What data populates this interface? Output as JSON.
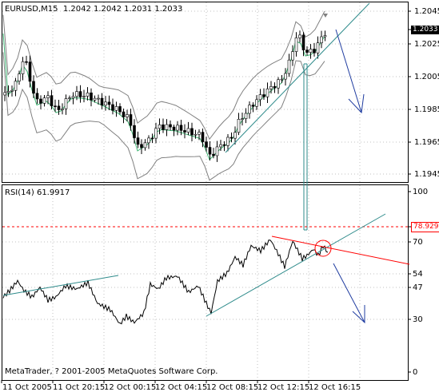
{
  "main": {
    "symbol_label": "EURUSD,M15",
    "ohlc": "1.2042 1.2042 1.2031 1.2033",
    "price_axis": [
      "1.2045",
      "1.2025",
      "1.2005",
      "1.1985",
      "1.1965",
      "1.1945"
    ],
    "current_price": "1.2033"
  },
  "rsi": {
    "label": "RSI(14) 61.9917",
    "axis": [
      "100",
      "70",
      "54",
      "47",
      "30",
      "0"
    ],
    "level_value": "78.9298"
  },
  "time_axis": [
    "11 Oct 2005",
    "11 Oct 20:15",
    "12 Oct 00:15",
    "12 Oct 04:15",
    "12 Oct 08:15",
    "12 Oct 12:15",
    "12 Oct 16:15"
  ],
  "copyright": "MetaTrader, ? 2001-2005 MetaQuotes Software Corp.",
  "colors": {
    "bull": "#ffffff",
    "bear": "#000000",
    "band": "#808080",
    "ma": "#3cb371",
    "trendline": "#2e8b8b",
    "arrow": "#1f3ca0",
    "rsi_resistance": "#ff0000",
    "level": "#ff0000",
    "highlight_circle": "#ff0000"
  }
}
